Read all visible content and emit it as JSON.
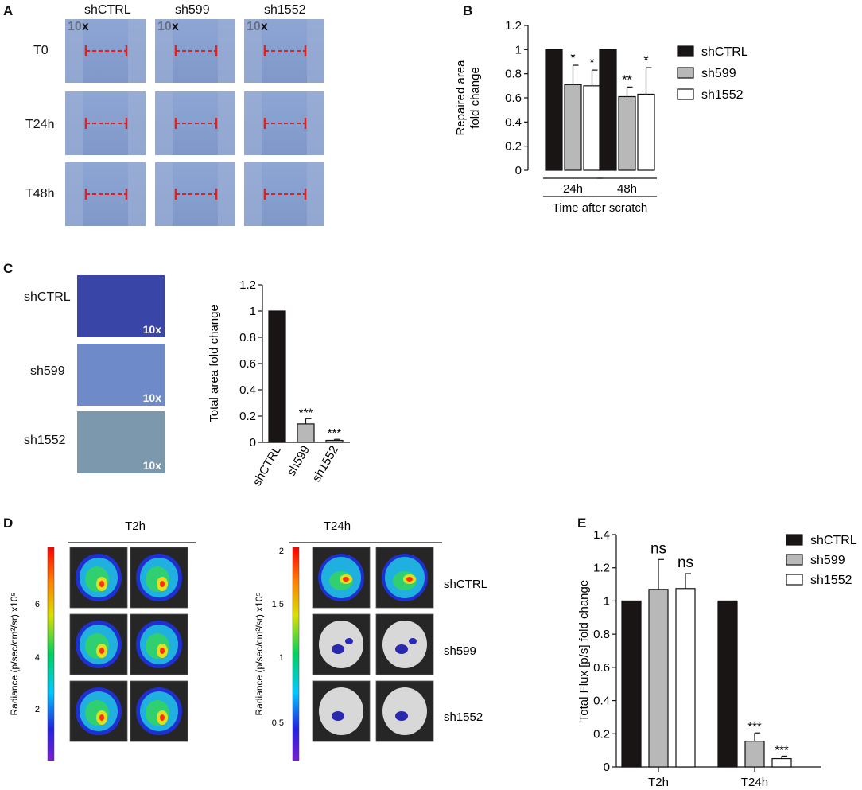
{
  "panels": {
    "A": "A",
    "B": "B",
    "C": "C",
    "D": "D",
    "E": "E"
  },
  "panel_a": {
    "columns": [
      "shCTRL",
      "sh599",
      "sh1552"
    ],
    "rows": [
      "T0",
      "T24h",
      "T48h"
    ],
    "magnification": "10x"
  },
  "panel_c": {
    "rows": [
      "shCTRL",
      "sh599",
      "sh1552"
    ],
    "magnification": "10x"
  },
  "panel_d": {
    "group1_label": "T2h",
    "group2_label": "T24h",
    "scale1_label": "Radiance (p/sec/cm²/sr) x10⁵",
    "scale1_ticks": [
      "6",
      "4",
      "2"
    ],
    "scale2_label": "Radiance (p/sec/cm²/sr) x10⁵",
    "scale2_ticks": [
      "2",
      "1.5",
      "1",
      "0.5"
    ],
    "row_labels": [
      "shCTRL",
      "sh599",
      "sh1552"
    ]
  },
  "colors": {
    "shCTRL": "#1a1515",
    "sh599": "#b8b8b8",
    "sh1552": "#ffffff",
    "error": "#d42020"
  },
  "chart_data": [
    {
      "id": "B",
      "type": "bar",
      "title": "",
      "ylabel": "Repaired area fold change",
      "xlabel": "Time after scratch",
      "categories": [
        "24h",
        "48h"
      ],
      "ylim": [
        0,
        1.2
      ],
      "yticks": [
        "0",
        "0.2",
        "0.4",
        "0.6",
        "0.8",
        "1",
        "1.2"
      ],
      "series": [
        {
          "name": "shCTRL",
          "values": [
            1.0,
            1.0
          ],
          "errors": [
            0,
            0
          ],
          "annotations": [
            "",
            ""
          ]
        },
        {
          "name": "sh599",
          "values": [
            0.71,
            0.61
          ],
          "errors": [
            0.16,
            0.08
          ],
          "annotations": [
            "*",
            "**"
          ]
        },
        {
          "name": "sh1552",
          "values": [
            0.7,
            0.63
          ],
          "errors": [
            0.13,
            0.22
          ],
          "annotations": [
            "*",
            "*"
          ]
        }
      ],
      "legend": "right"
    },
    {
      "id": "C",
      "type": "bar",
      "title": "",
      "ylabel": "Total area fold change",
      "categories": [
        "shCTRL",
        "sh599",
        "sh1552"
      ],
      "ylim": [
        0,
        1.2
      ],
      "yticks": [
        "0",
        "0.2",
        "0.4",
        "0.6",
        "0.8",
        "1",
        "1.2"
      ],
      "values": [
        1.0,
        0.14,
        0.015
      ],
      "errors": [
        0,
        0.04,
        0.008
      ],
      "annotations": [
        "",
        "***",
        "***"
      ]
    },
    {
      "id": "E",
      "type": "bar",
      "title": "",
      "ylabel": "Total Flux [p/s] fold change",
      "categories": [
        "T2h",
        "T24h"
      ],
      "ylim": [
        0,
        1.4
      ],
      "yticks": [
        "0",
        "0.2",
        "0.4",
        "0.6",
        "0.8",
        "1",
        "1.2",
        "1.4"
      ],
      "series": [
        {
          "name": "shCTRL",
          "values": [
            1.0,
            1.0
          ],
          "errors": [
            0,
            0
          ],
          "annotations": [
            "",
            ""
          ]
        },
        {
          "name": "sh599",
          "values": [
            1.07,
            0.155
          ],
          "errors": [
            0.18,
            0.05
          ],
          "annotations": [
            "ns",
            "***"
          ]
        },
        {
          "name": "sh1552",
          "values": [
            1.075,
            0.05
          ],
          "errors": [
            0.09,
            0.015
          ],
          "annotations": [
            "ns",
            "***"
          ]
        }
      ],
      "legend": "top-right"
    }
  ]
}
